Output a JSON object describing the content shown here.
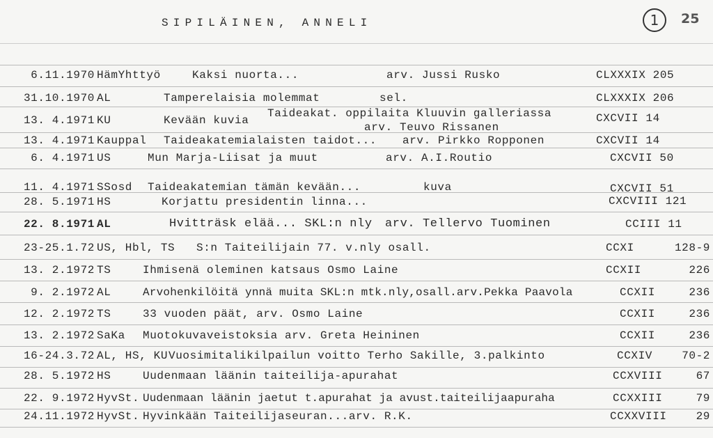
{
  "header": {
    "name": "SIPILÄINEN, ANNELI",
    "card_number": "1",
    "page_mark": "25"
  },
  "entries": [
    {
      "date": "6.11.1970",
      "source": "HämYhttyö",
      "title": "Kaksi nuorta...",
      "note": "arv. Jussi Rusko",
      "ref": "CLXXXIX 205"
    },
    {
      "date": "31.10.1970",
      "source": "AL",
      "title": "Tamperelaisia molemmat",
      "note": "sel.",
      "ref": "CLXXXIX 206"
    },
    {
      "date": "13. 4.1971",
      "source": "KU",
      "title": "Kevään kuvia",
      "note": "Taideakat. oppilaita Kluuvin galleriassa",
      "note2": "arv. Teuvo Rissanen",
      "ref": "CXCVII 14"
    },
    {
      "date": "13. 4.1971",
      "source": "Kauppal",
      "title": "Taideakatemialaisten taidot...",
      "note": "arv. Pirkko Ropponen",
      "ref": "CXCVII 14"
    },
    {
      "date": "6. 4.1971",
      "source": "US",
      "title": "Mun Marja-Liisat ja muut",
      "note": "arv. A.I.Routio",
      "ref": "CXCVII 50"
    },
    {
      "date": "11. 4.1971",
      "source": "SSosd",
      "title": "Taideakatemian tämän kevään...",
      "note": "kuva",
      "ref": "CXCVII 51"
    },
    {
      "date": "28. 5.1971",
      "source": "HS",
      "title": "Korjattu presidentin linna...",
      "note": "",
      "ref": "CXCVIII 121"
    },
    {
      "date": "22. 8.1971",
      "source": "AL",
      "title": "Hvitträsk elää... SKL:n nly",
      "note": "arv. Tellervo Tuominen",
      "ref": "CCIII 11"
    },
    {
      "date": "23-25.1.72",
      "source": "US, Hbl, TS",
      "title": "S:n Taiteilijain 77. v.nly  osall.",
      "note": "",
      "ref": "CCXI",
      "page": "128-9"
    },
    {
      "date": "13. 2.1972",
      "source": "TS",
      "title": "Ihmisenä oleminen  katsaus Osmo Laine",
      "note": "",
      "ref": "CCXII",
      "page": "226"
    },
    {
      "date": "9. 2.1972",
      "source": "AL",
      "title": "Arvohenkilöitä ynnä muita SKL:n mtk.nly,osall.arv.Pekka Paavola",
      "note": "",
      "ref": "CCXII",
      "page": "236"
    },
    {
      "date": "12. 2.1972",
      "source": "TS",
      "title": "33 vuoden päät, arv. Osmo Laine",
      "note": "",
      "ref": "CCXII",
      "page": "236"
    },
    {
      "date": "13. 2.1972",
      "source": "SaKa",
      "title": "Muotokuvaveistoksia  arv. Greta Heininen",
      "note": "",
      "ref": "CCXII",
      "page": "236"
    },
    {
      "date": "16-24.3.72",
      "source": "AL, HS, KU",
      "title": "Vuosimitalikilpailun voitto Terho Sakille, 3.palkinto",
      "note": "",
      "ref": "CCXIV",
      "page": "70-2"
    },
    {
      "date": "28. 5.1972",
      "source": "HS",
      "title": "Uudenmaan läänin taiteilija-apurahat",
      "note": "",
      "ref": "CCXVIII",
      "page": "67"
    },
    {
      "date": "22. 9.1972",
      "source": "HyvSt.",
      "title": "Uudenmaan läänin jaetut t.apurahat ja avust.taiteilijaapuraha",
      "note": "",
      "ref": "CCXXIII",
      "page": "79"
    },
    {
      "date": "24.11.1972",
      "source": "HyvSt.",
      "title": "Hyvinkään Taiteilijaseuran...arv. R.K.",
      "note": "",
      "ref": "CCXXVIII",
      "page": "29"
    }
  ]
}
